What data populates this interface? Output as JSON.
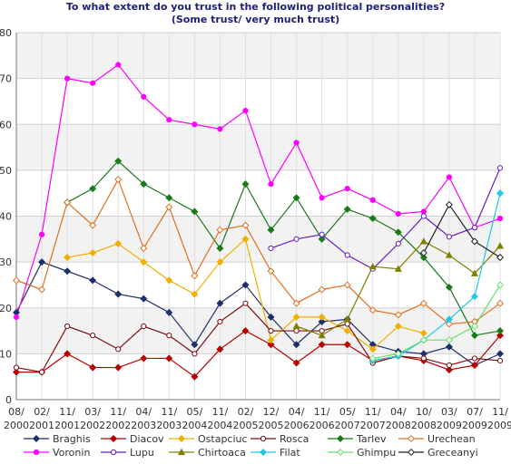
{
  "chart_data": {
    "type": "line",
    "title": "To what extent do you trust in the following political personalities?",
    "subtitle": "(Some trust/ very much trust)",
    "xlabel": "",
    "ylabel": "",
    "ylim": [
      0,
      80
    ],
    "yticks": [
      "0",
      "10",
      "20",
      "30",
      "40",
      "50",
      "60",
      "70",
      "80"
    ],
    "grid": true,
    "legend_position": "bottom",
    "categories": [
      [
        "08/",
        "2000"
      ],
      [
        "02/",
        "2001"
      ],
      [
        "11/",
        "2001"
      ],
      [
        "03/",
        "2002"
      ],
      [
        "11/",
        "2002"
      ],
      [
        "04/",
        "2003"
      ],
      [
        "11/",
        "2003"
      ],
      [
        "05/",
        "2004"
      ],
      [
        "11/",
        "2004"
      ],
      [
        "02/",
        "2005"
      ],
      [
        "12/",
        "2005"
      ],
      [
        "04/",
        "2006"
      ],
      [
        "11/",
        "2006"
      ],
      [
        "05/",
        "2007"
      ],
      [
        "11/",
        "2007"
      ],
      [
        "04/",
        "2008"
      ],
      [
        "10/",
        "2008"
      ],
      [
        "03/",
        "2009"
      ],
      [
        "07/",
        "2009"
      ],
      [
        "11/",
        "2009"
      ]
    ],
    "series": [
      {
        "name": "Braghis",
        "color": "#1f2f6b",
        "marker": "diamond",
        "fill": true,
        "values": [
          19,
          30,
          28,
          26,
          23,
          22,
          19,
          12,
          21,
          25,
          18,
          12,
          17,
          17.5,
          12,
          10.5,
          10,
          11.5,
          7.5,
          10
        ]
      },
      {
        "name": "Diacov",
        "color": "#b80000",
        "marker": "diamond",
        "fill": true,
        "values": [
          6,
          6,
          10,
          7,
          7,
          9,
          9,
          5,
          11,
          15,
          12,
          8,
          12,
          12,
          8.5,
          9.5,
          8.5,
          6.5,
          7.5,
          14
        ]
      },
      {
        "name": "Ostapciuc",
        "color": "#f0b000",
        "marker": "diamond",
        "fill": true,
        "values": [
          null,
          null,
          31,
          32,
          34,
          30,
          26,
          23,
          30,
          35,
          13,
          18,
          18,
          15,
          11,
          16,
          14.5,
          null,
          null,
          null
        ]
      },
      {
        "name": "Rosca",
        "color": "#7a1010",
        "marker": "circle",
        "fill": false,
        "values": [
          7,
          6,
          16,
          14,
          11,
          16,
          14,
          10,
          17,
          21,
          15,
          15,
          15,
          16.5,
          8,
          9.5,
          9,
          7.5,
          9,
          8.5
        ]
      },
      {
        "name": "Tarlev",
        "color": "#1a7a1a",
        "marker": "diamond",
        "fill": true,
        "values": [
          null,
          null,
          43,
          46,
          52,
          47,
          44,
          41,
          33,
          47,
          37,
          44,
          35,
          41.5,
          39.5,
          36.5,
          31,
          24.5,
          14,
          15
        ]
      },
      {
        "name": "Urechean",
        "color": "#e07020",
        "marker": "diamond",
        "fill": false,
        "values": [
          26,
          24,
          43,
          38,
          48,
          33,
          42,
          27,
          37,
          38,
          28,
          21,
          24,
          25,
          19.5,
          18.5,
          21,
          16.5,
          17,
          21
        ]
      },
      {
        "name": "Voronin",
        "color": "#ff00ff",
        "marker": "circle",
        "fill": true,
        "values": [
          18,
          36,
          70,
          69,
          73,
          66,
          61,
          60,
          59,
          63,
          47,
          56,
          44,
          46,
          43.5,
          40.5,
          41,
          48.5,
          37.5,
          39.5
        ]
      },
      {
        "name": "Lupu",
        "color": "#6a1fc0",
        "marker": "circle",
        "fill": false,
        "values": [
          null,
          null,
          null,
          null,
          null,
          null,
          null,
          null,
          null,
          null,
          33,
          35,
          36,
          31.5,
          28.5,
          34,
          40,
          35.5,
          37.5,
          50.5
        ]
      },
      {
        "name": "Chirtoaca",
        "color": "#808000",
        "marker": "triangle",
        "fill": true,
        "values": [
          null,
          null,
          null,
          null,
          null,
          null,
          null,
          null,
          null,
          null,
          null,
          16,
          14,
          17.5,
          29,
          28.5,
          34.5,
          31.5,
          27.5,
          33.5
        ]
      },
      {
        "name": "Filat",
        "color": "#20c8e8",
        "marker": "diamond",
        "fill": true,
        "values": [
          null,
          null,
          null,
          null,
          null,
          null,
          null,
          null,
          null,
          null,
          null,
          null,
          null,
          null,
          8.5,
          9.5,
          13,
          17.5,
          22.5,
          45
        ]
      },
      {
        "name": "Ghimpu",
        "color": "#66e066",
        "marker": "diamond",
        "fill": false,
        "values": [
          null,
          null,
          null,
          null,
          null,
          null,
          null,
          null,
          null,
          null,
          null,
          null,
          null,
          null,
          9,
          10,
          13,
          13,
          16,
          25
        ]
      },
      {
        "name": "Greceanyi",
        "color": "#222222",
        "marker": "diamond",
        "fill": false,
        "values": [
          null,
          null,
          null,
          null,
          null,
          null,
          null,
          null,
          null,
          null,
          null,
          null,
          null,
          null,
          null,
          null,
          32,
          42.5,
          34.5,
          31
        ]
      }
    ]
  }
}
